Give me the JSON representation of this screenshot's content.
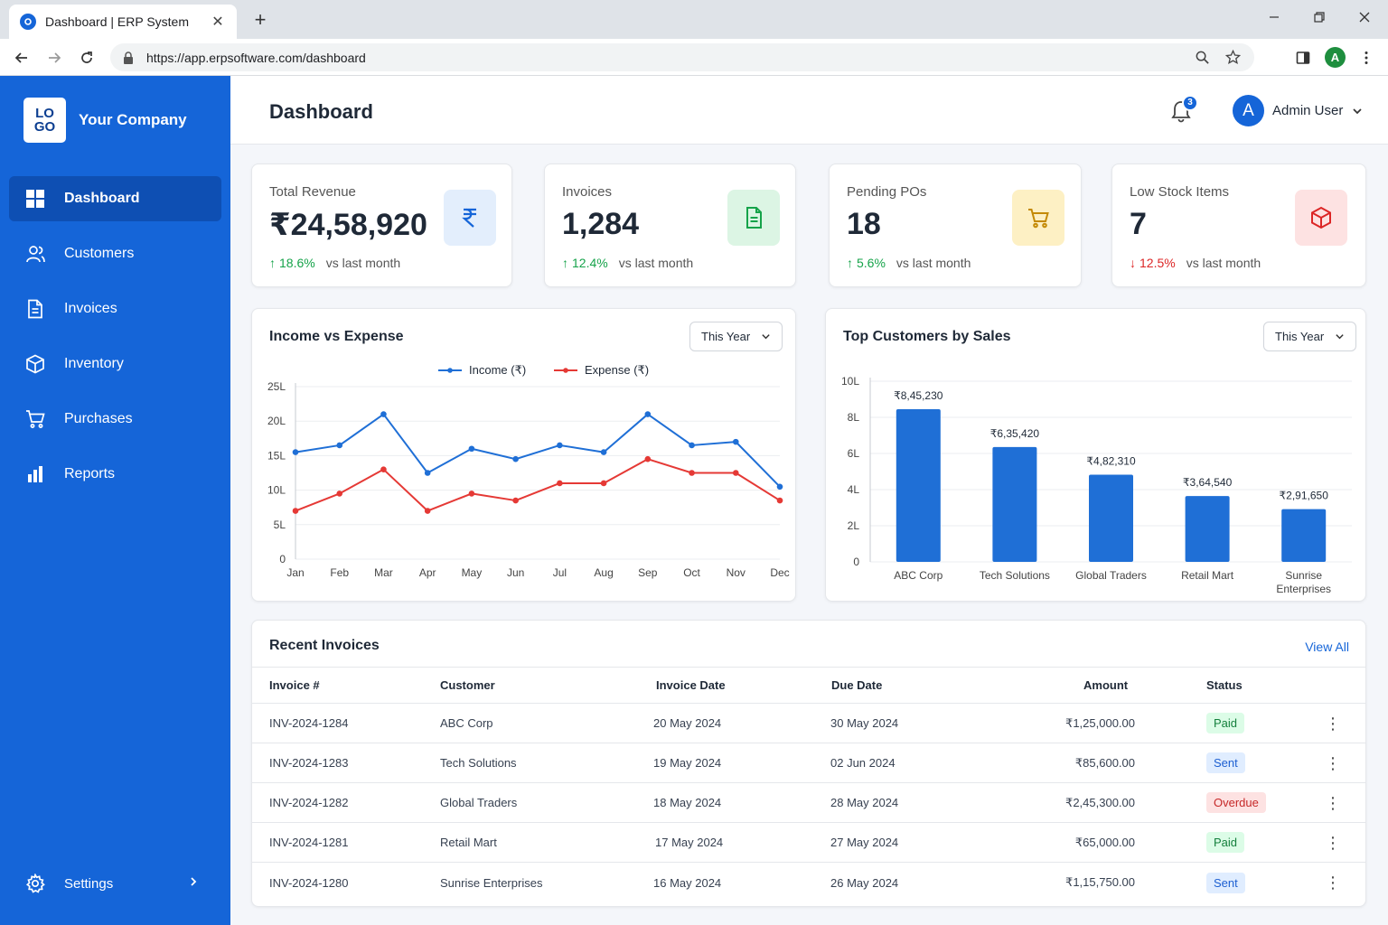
{
  "browser": {
    "tab_title": "Dashboard | ERP System",
    "url": "https://app.erpsoftware.com/dashboard",
    "profile_initial": "A",
    "new_tab_label": "+"
  },
  "sidebar": {
    "logo_text_1": "LO",
    "logo_text_2": "GO",
    "company": "Your Company",
    "items": [
      {
        "label": "Dashboard",
        "icon": "grid-icon",
        "active": true
      },
      {
        "label": "Customers",
        "icon": "users-icon"
      },
      {
        "label": "Invoices",
        "icon": "document-icon"
      },
      {
        "label": "Inventory",
        "icon": "box-icon"
      },
      {
        "label": "Purchases",
        "icon": "cart-icon"
      },
      {
        "label": "Reports",
        "icon": "bar-chart-icon"
      }
    ],
    "settings_label": "Settings"
  },
  "header": {
    "title": "Dashboard",
    "notification_count": "3",
    "user_initial": "A",
    "user_name": "Admin User"
  },
  "kpis": [
    {
      "label": "Total Revenue",
      "value": "₹24,58,920",
      "trend": "18.6%",
      "direction": "up",
      "vs": "vs last month",
      "icon": "rupee-icon",
      "icon_bg": "#e3eefc",
      "icon_color": "#1565d8"
    },
    {
      "label": "Invoices",
      "value": "1,284",
      "trend": "12.4%",
      "direction": "up",
      "vs": "vs last month",
      "icon": "document-icon",
      "icon_bg": "#dcf5e4",
      "icon_color": "#16a34a"
    },
    {
      "label": "Pending POs",
      "value": "18",
      "trend": "5.6%",
      "direction": "up",
      "vs": "vs last month",
      "icon": "cart-icon",
      "icon_bg": "#fdf0c4",
      "icon_color": "#c48a06"
    },
    {
      "label": "Low Stock Items",
      "value": "7",
      "trend": "12.5%",
      "direction": "down",
      "vs": "vs last month",
      "icon": "box-icon",
      "icon_bg": "#fde2e2",
      "icon_color": "#dc2626"
    }
  ],
  "income_chart": {
    "title": "Income vs Expense",
    "filter": "This Year"
  },
  "customers_chart": {
    "title": "Top Customers by Sales",
    "filter": "This Year"
  },
  "chart_data": [
    {
      "type": "line",
      "title": "Income vs Expense",
      "categories": [
        "Jan",
        "Feb",
        "Mar",
        "Apr",
        "May",
        "Jun",
        "Jul",
        "Aug",
        "Sep",
        "Oct",
        "Nov",
        "Dec"
      ],
      "series": [
        {
          "name": "Income (₹)",
          "color": "#1f6fd6",
          "values": [
            15.5,
            16.5,
            21,
            12.5,
            16,
            14.5,
            16.5,
            15.5,
            21,
            16.5,
            17,
            10.5
          ]
        },
        {
          "name": "Expense (₹)",
          "color": "#e53935",
          "values": [
            7,
            9.5,
            13,
            7,
            9.5,
            8.5,
            11,
            11,
            14.5,
            12.5,
            12.5,
            8.5
          ]
        }
      ],
      "yticks": [
        "0",
        "5L",
        "10L",
        "15L",
        "20L",
        "25L"
      ],
      "ylim": [
        0,
        25
      ],
      "grid": true,
      "legend": "top"
    },
    {
      "type": "bar",
      "title": "Top Customers by Sales",
      "categories": [
        "ABC Corp",
        "Tech Solutions",
        "Global Traders",
        "Retail Mart",
        "Sunrise Enterprises"
      ],
      "values": [
        845230,
        635420,
        482310,
        364540,
        291650
      ],
      "data_labels": [
        "₹8,45,230",
        "₹6,35,420",
        "₹4,82,310",
        "₹3,64,540",
        "₹2,91,650"
      ],
      "yticks": [
        "0",
        "2L",
        "4L",
        "6L",
        "8L",
        "10L"
      ],
      "ylim": [
        0,
        1000000
      ],
      "color": "#1f6fd6",
      "grid": true
    }
  ],
  "invoices": {
    "title": "Recent Invoices",
    "view_all": "View All",
    "columns": [
      "Invoice #",
      "Customer",
      "Invoice Date",
      "Due Date",
      "Amount",
      "Status"
    ],
    "rows": [
      {
        "id": "INV-2024-1284",
        "customer": "ABC Corp",
        "date": "20 May 2024",
        "due": "30 May 2024",
        "amount": "₹1,25,000.00",
        "status": "Paid"
      },
      {
        "id": "INV-2024-1283",
        "customer": "Tech Solutions",
        "date": "19 May 2024",
        "due": "02 Jun 2024",
        "amount": "₹85,600.00",
        "status": "Sent"
      },
      {
        "id": "INV-2024-1282",
        "customer": "Global Traders",
        "date": "18 May 2024",
        "due": "28 May 2024",
        "amount": "₹2,45,300.00",
        "status": "Overdue"
      },
      {
        "id": "INV-2024-1281",
        "customer": "Retail Mart",
        "date": "17 May 2024",
        "due": "27 May 2024",
        "amount": "₹65,000.00",
        "status": "Paid"
      },
      {
        "id": "INV-2024-1280",
        "customer": "Sunrise Enterprises",
        "date": "16 May 2024",
        "due": "26 May 2024",
        "amount": "₹1,15,750.00",
        "status": "Sent"
      }
    ]
  }
}
